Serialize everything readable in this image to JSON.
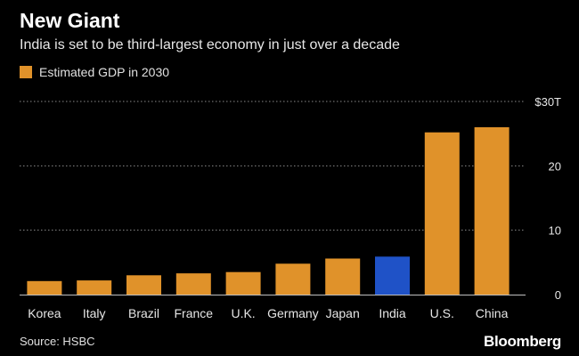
{
  "header": {
    "title": "New Giant",
    "subtitle": "India is set to be third-largest economy in just over a decade"
  },
  "footer": {
    "source": "Source: HSBC",
    "brand": "Bloomberg"
  },
  "colors": {
    "primary_bar": "#e0922a",
    "highlight_bar": "#1f52c7",
    "grid": "#8a8a8a",
    "axis": "#bfbfbf",
    "text": "#e6e6e6"
  },
  "chart_data": {
    "type": "bar",
    "legend": [
      "Estimated GDP in 2030"
    ],
    "legend_position": "top-left",
    "categories": [
      "Korea",
      "Italy",
      "Brazil",
      "France",
      "U.K.",
      "Germany",
      "Japan",
      "India",
      "U.S.",
      "China"
    ],
    "series": [
      {
        "name": "Estimated GDP in 2030",
        "values": [
          2.1,
          2.2,
          3.0,
          3.3,
          3.5,
          4.8,
          5.6,
          5.9,
          25.2,
          26.0
        ]
      }
    ],
    "highlight": "India",
    "ylim": [
      0,
      30
    ],
    "yticks": [
      0,
      10,
      20,
      30
    ],
    "ytick_labels": [
      "0",
      "10",
      "20",
      "$30T"
    ],
    "grid": true,
    "yaxis_position": "right"
  }
}
